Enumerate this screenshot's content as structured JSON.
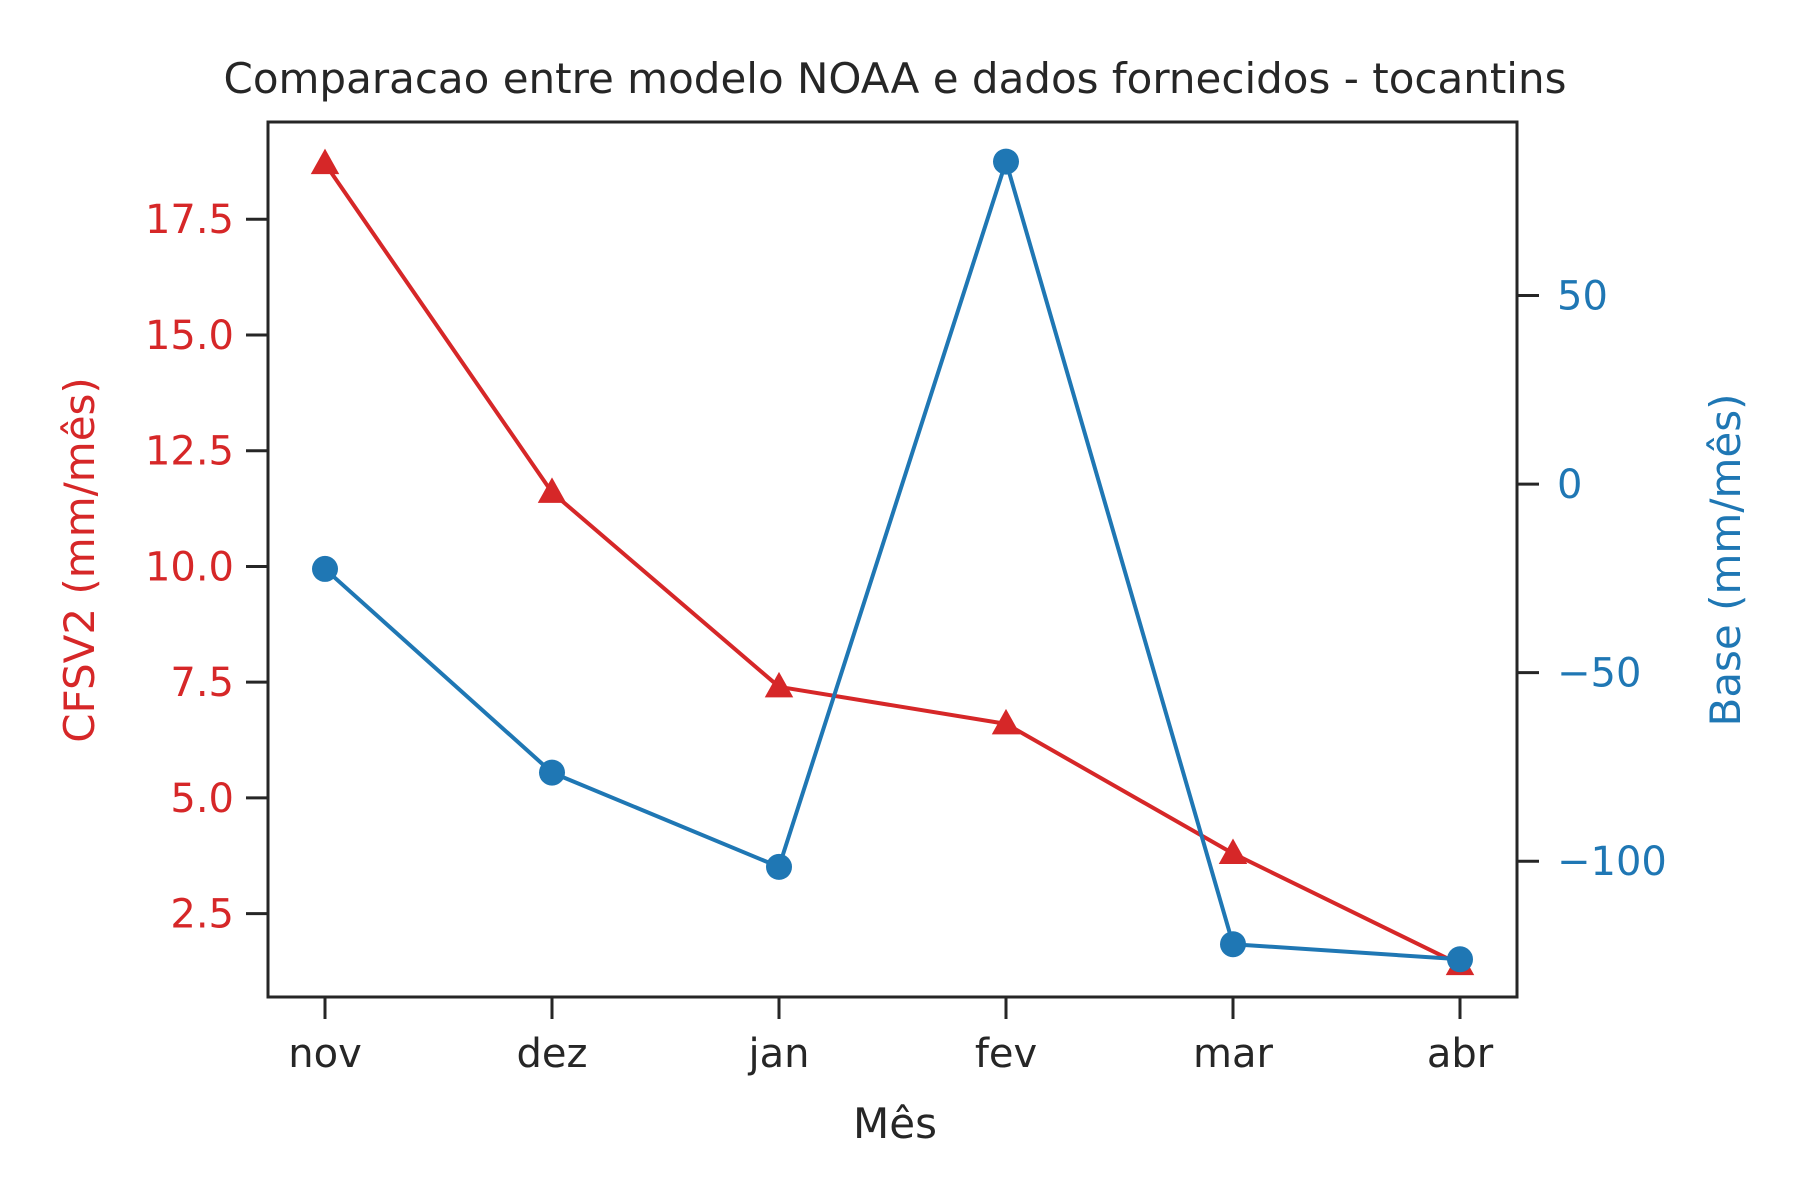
{
  "chart_data": {
    "type": "line",
    "title": "Comparacao entre modelo NOAA e dados fornecidos - tocantins",
    "xlabel": "Mês",
    "categories": [
      "nov",
      "dez",
      "jan",
      "fev",
      "mar",
      "abr"
    ],
    "grid": false,
    "legend": null,
    "axes": {
      "left": {
        "label": "CFSV2 (mm/mês)",
        "color": "#d62728",
        "ylim": [
          0.7,
          19.6
        ],
        "ticks": [
          2.5,
          5.0,
          7.5,
          10.0,
          12.5,
          15.0,
          17.5
        ],
        "tick_labels": [
          "2.5",
          "5.0",
          "7.5",
          "10.0",
          "12.5",
          "15.0",
          "17.5"
        ]
      },
      "right": {
        "label": "Base (mm/mês)",
        "color": "#1f77b4",
        "ylim": [
          -136,
          96
        ],
        "ticks": [
          -100,
          -50,
          0,
          50
        ],
        "tick_labels": [
          "−100",
          "−50",
          "0",
          "50"
        ]
      }
    },
    "series": [
      {
        "axis": "left",
        "color": "#d62728",
        "marker": "triangle",
        "values": [
          18.7,
          11.6,
          7.4,
          6.6,
          3.8,
          1.4
        ]
      },
      {
        "axis": "right",
        "color": "#1f77b4",
        "marker": "circle",
        "values": [
          -22.5,
          -76.5,
          -101.5,
          85.5,
          -122,
          -126
        ]
      }
    ]
  }
}
